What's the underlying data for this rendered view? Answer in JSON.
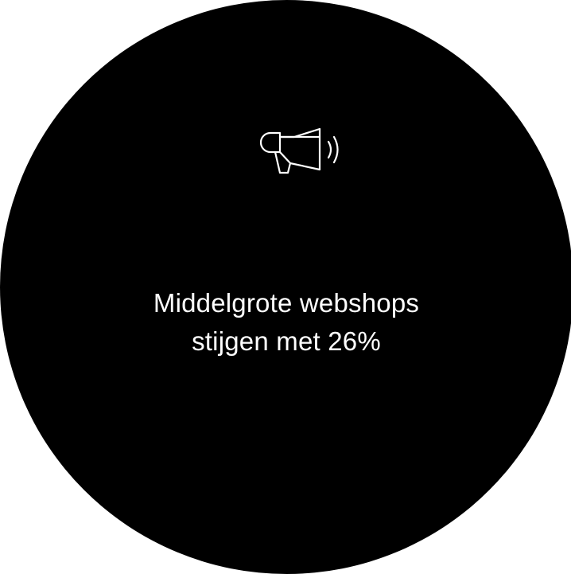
{
  "card": {
    "background_color": "#000000",
    "text_color": "#ffffff",
    "icon": "megaphone-icon",
    "headline": {
      "line1": "Middelgrote webshops",
      "line2": "stijgen met 26%"
    }
  }
}
